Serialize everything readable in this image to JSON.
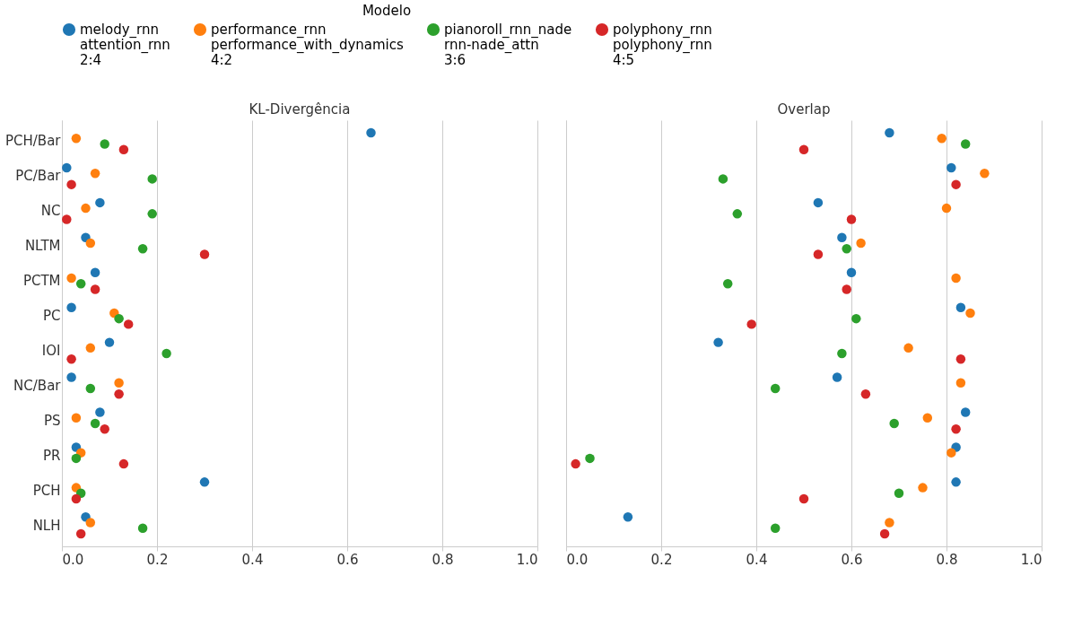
{
  "chart_data": [
    {
      "type": "scatter",
      "orientation": "horizontal",
      "title": "KL-Divergência",
      "legend_title": "Modelo",
      "legend": "top",
      "grid": "x",
      "marker": "circle",
      "categories": [
        "PCH/Bar",
        "PC/Bar",
        "NC",
        "NLTM",
        "PCTM",
        "PC",
        "IOI",
        "NC/Bar",
        "PS",
        "PR",
        "PCH",
        "NLH"
      ],
      "xlim": [
        0,
        1
      ],
      "xticks": [
        {
          "value": 0,
          "label": "0.0"
        },
        {
          "value": 0.2,
          "label": "0.2"
        },
        {
          "value": 0.4,
          "label": "0.4"
        },
        {
          "value": 0.6,
          "label": "0.6"
        },
        {
          "value": 0.8,
          "label": "0.8"
        },
        {
          "value": 1,
          "label": "1.0"
        }
      ],
      "series": [
        {
          "name": "melody_rnn\nattention_rnn\n2:4",
          "color": "#1f77b4",
          "values": [
            0.65,
            0.01,
            0.08,
            0.05,
            0.07,
            0.02,
            0.1,
            0.02,
            0.08,
            0.03,
            0.3,
            0.05
          ]
        },
        {
          "name": "performance_rnn\nperformance_with_dynamics\n4:2",
          "color": "#ff7f0e",
          "values": [
            0.03,
            0.07,
            0.05,
            0.06,
            0.02,
            0.11,
            0.06,
            0.12,
            0.03,
            0.04,
            0.03,
            0.06
          ]
        },
        {
          "name": "pianoroll_rnn_nade\nrnn-nade_attn\n3:6",
          "color": "#2ca02c",
          "values": [
            0.09,
            0.19,
            0.19,
            0.17,
            0.04,
            0.12,
            0.22,
            0.06,
            0.07,
            0.03,
            0.04,
            0.17
          ]
        },
        {
          "name": "polyphony_rnn\npolyphony_rnn\n4:5",
          "color": "#d62728",
          "values": [
            0.13,
            0.02,
            0.01,
            0.3,
            0.07,
            0.14,
            0.02,
            0.12,
            0.09,
            0.13,
            0.03,
            0.04
          ]
        }
      ]
    },
    {
      "type": "scatter",
      "orientation": "horizontal",
      "title": "Overlap",
      "legend": false,
      "grid": "x",
      "marker": "circle",
      "tick_labels": "x",
      "categories": [
        null,
        null,
        null,
        null,
        null,
        null,
        null,
        null,
        null,
        null,
        null,
        null
      ],
      "xlim": [
        0,
        1
      ],
      "xticks": [
        {
          "value": 0,
          "label": "0.0"
        },
        {
          "value": 0.2,
          "label": "0.2"
        },
        {
          "value": 0.4,
          "label": "0.4"
        },
        {
          "value": 0.6,
          "label": "0.6"
        },
        {
          "value": 0.8,
          "label": "0.8"
        },
        {
          "value": 1,
          "label": "1.0"
        }
      ],
      "series": [
        {
          "name": "melody_rnn\nattention_rnn\n2:4",
          "color": "#1f77b4",
          "values": [
            0.68,
            0.81,
            0.53,
            0.58,
            0.6,
            0.83,
            0.32,
            0.57,
            0.84,
            0.82,
            0.82,
            0.13
          ]
        },
        {
          "name": "performance_rnn\nperformance_with_dynamics\n4:2",
          "color": "#ff7f0e",
          "values": [
            0.79,
            0.88,
            0.8,
            0.62,
            0.82,
            0.85,
            0.72,
            0.83,
            0.76,
            0.81,
            0.75,
            0.68
          ]
        },
        {
          "name": "pianoroll_rnn_nade\nrnn-nade_attn\n3:6",
          "color": "#2ca02c",
          "values": [
            0.84,
            0.33,
            0.36,
            0.59,
            0.34,
            0.61,
            0.58,
            0.44,
            0.69,
            0.05,
            0.7,
            0.44
          ]
        },
        {
          "name": "polyphony_rnn\npolyphony_rnn\n4:5",
          "color": "#d62728",
          "values": [
            0.5,
            0.82,
            0.6,
            0.53,
            0.59,
            0.39,
            0.83,
            0.63,
            0.82,
            0.02,
            0.5,
            0.67
          ]
        }
      ]
    }
  ]
}
